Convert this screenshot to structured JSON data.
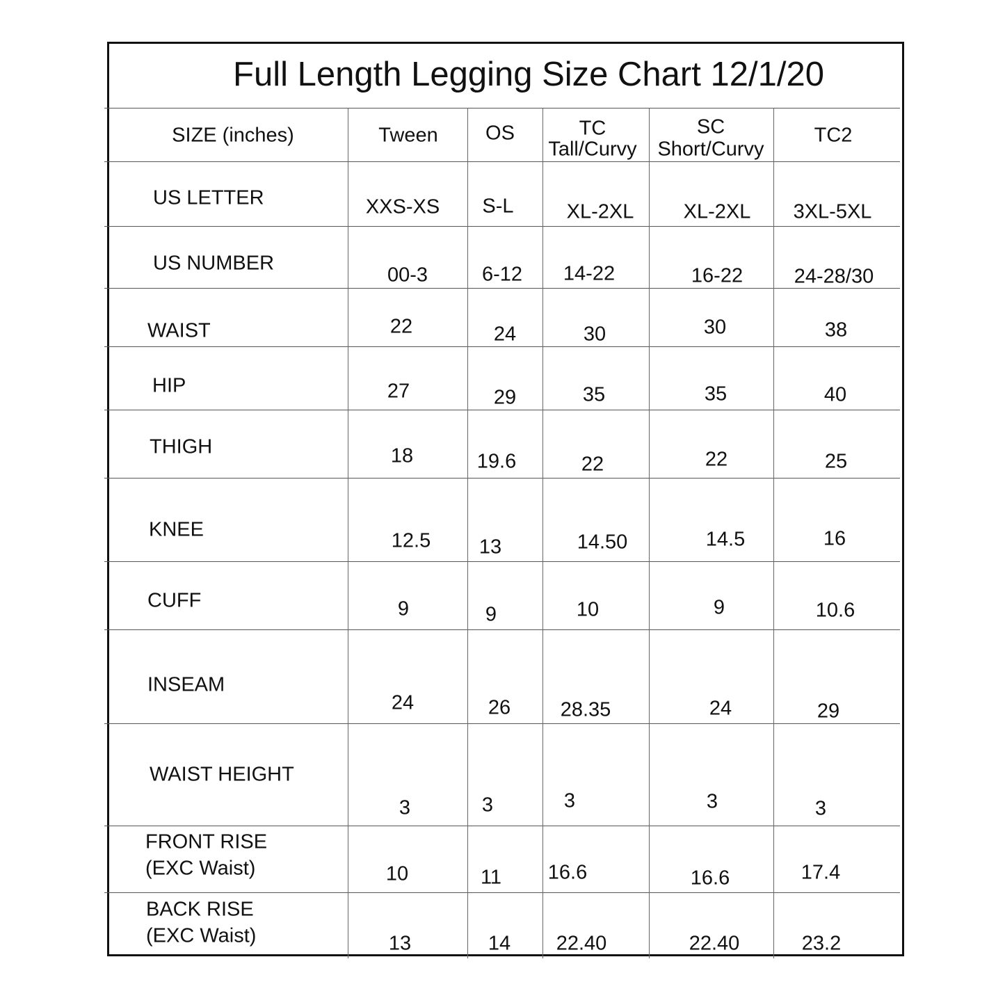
{
  "title": "Full Length Legging Size Chart 12/1/20",
  "header": {
    "label": "SIZE (inches)",
    "columns": [
      {
        "line1": "Tween"
      },
      {
        "line1": "OS"
      },
      {
        "line1": "TC",
        "line2": "Tall/Curvy"
      },
      {
        "line1": "SC",
        "line2": "Short/Curvy"
      },
      {
        "line1": "TC2"
      }
    ]
  },
  "rows": [
    {
      "label": "US LETTER",
      "values": [
        "XXS-XS",
        "S-L",
        "XL-2XL",
        "XL-2XL",
        "3XL-5XL"
      ]
    },
    {
      "label": "US NUMBER",
      "values": [
        "00-3",
        "6-12",
        "14-22",
        "16-22",
        "24-28/30"
      ]
    },
    {
      "label": "WAIST",
      "values": [
        "22",
        "24",
        "30",
        "30",
        "38"
      ]
    },
    {
      "label": "HIP",
      "values": [
        "27",
        "29",
        "35",
        "35",
        "40"
      ]
    },
    {
      "label": "THIGH",
      "values": [
        "18",
        "19.6",
        "22",
        "22",
        "25"
      ]
    },
    {
      "label": "KNEE",
      "values": [
        "12.5",
        "13",
        "14.50",
        "14.5",
        "16"
      ]
    },
    {
      "label": "CUFF",
      "values": [
        "9",
        "9",
        "10",
        "9",
        "10.6"
      ]
    },
    {
      "label": "INSEAM",
      "values": [
        "24",
        "26",
        "28.35",
        "24",
        "29"
      ]
    },
    {
      "label": "WAIST HEIGHT",
      "values": [
        "3",
        "3",
        "3",
        "3",
        "3"
      ]
    },
    {
      "label": "FRONT RISE",
      "label2": "(EXC Waist)",
      "values": [
        "10",
        "11",
        "16.6",
        "16.6",
        "17.4"
      ]
    },
    {
      "label": "BACK RISE",
      "label2": "(EXC Waist)",
      "values": [
        "13",
        "14",
        "22.40",
        "22.40",
        "23.2"
      ]
    }
  ]
}
